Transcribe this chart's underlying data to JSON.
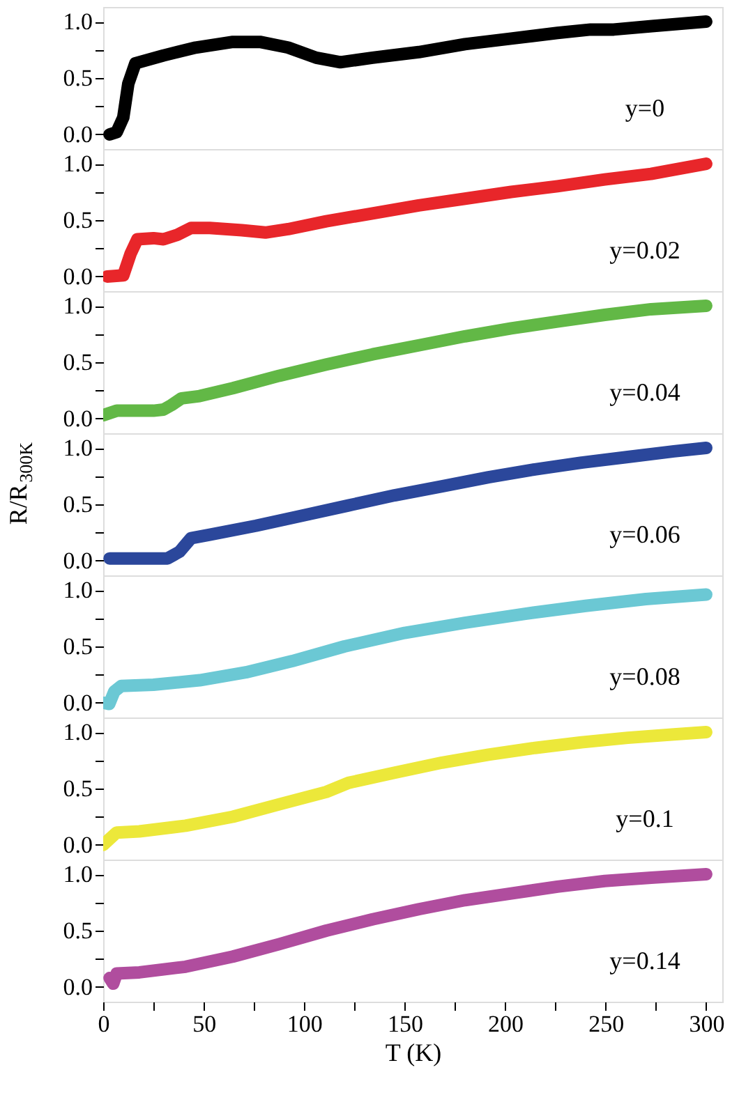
{
  "chart_data": [
    {
      "type": "line",
      "annotations": [
        "y=0"
      ],
      "xlim": [
        0,
        308
      ],
      "ylim": [
        -0.13,
        1.13
      ],
      "yticks": [
        {
          "value": 0,
          "label": "0.0"
        },
        {
          "value": 0.25,
          "label": null
        },
        {
          "value": 0.5,
          "label": "0.5"
        },
        {
          "value": 0.75,
          "label": null
        },
        {
          "value": 1,
          "label": "1.0"
        }
      ],
      "tick_labels": "y",
      "marker": "none",
      "line_style": "solid",
      "series": [
        {
          "color": "#000000",
          "x": [
            3.2,
            6.7,
            10,
            12.5,
            16,
            30,
            46,
            64.5,
            78,
            92,
            106,
            118,
            134,
            157,
            180,
            203,
            226,
            242.5,
            254,
            273,
            300
          ],
          "values": [
            0.0,
            0.02,
            0.15,
            0.45,
            0.63,
            0.7,
            0.77,
            0.82,
            0.82,
            0.77,
            0.68,
            0.64,
            0.68,
            0.73,
            0.8,
            0.85,
            0.9,
            0.93,
            0.93,
            0.96,
            1.0
          ]
        }
      ]
    },
    {
      "type": "line",
      "annotations": [
        "y=0.02"
      ],
      "xlim": [
        0,
        308
      ],
      "ylim": [
        -0.13,
        1.13
      ],
      "yticks": [
        {
          "value": 0,
          "label": "0.0"
        },
        {
          "value": 0.25,
          "label": null
        },
        {
          "value": 0.5,
          "label": "0.5"
        },
        {
          "value": 0.75,
          "label": null
        },
        {
          "value": 1,
          "label": "1.0"
        }
      ],
      "tick_labels": "y",
      "marker": "none",
      "line_style": "solid",
      "series": [
        {
          "color": "#e8262a",
          "x": [
            2,
            10,
            13.6,
            17,
            25,
            30,
            37,
            43.7,
            53,
            69,
            80.7,
            92,
            111,
            134,
            157,
            180,
            203,
            226,
            249.5,
            272.6,
            300
          ],
          "values": [
            0.0,
            0.01,
            0.2,
            0.33,
            0.34,
            0.33,
            0.37,
            0.43,
            0.43,
            0.41,
            0.39,
            0.42,
            0.49,
            0.56,
            0.63,
            0.69,
            0.75,
            0.8,
            0.86,
            0.91,
            1.0
          ]
        }
      ]
    },
    {
      "type": "line",
      "annotations": [
        "y=0.04"
      ],
      "xlim": [
        0,
        308
      ],
      "ylim": [
        -0.13,
        1.13
      ],
      "yticks": [
        {
          "value": 0,
          "label": "0.0"
        },
        {
          "value": 0.25,
          "label": null
        },
        {
          "value": 0.5,
          "label": "0.5"
        },
        {
          "value": 0.75,
          "label": null
        },
        {
          "value": 1,
          "label": "1.0"
        }
      ],
      "tick_labels": "y",
      "marker": "none",
      "line_style": "solid",
      "series": [
        {
          "color": "#62b846",
          "x": [
            0,
            6.7,
            25,
            30,
            34,
            39,
            48,
            64.5,
            87.6,
            111,
            134,
            157,
            180,
            203,
            226,
            249.5,
            272.6,
            300
          ],
          "values": [
            0.03,
            0.07,
            0.07,
            0.08,
            0.12,
            0.18,
            0.2,
            0.27,
            0.38,
            0.48,
            0.57,
            0.65,
            0.73,
            0.8,
            0.86,
            0.92,
            0.97,
            1.0
          ]
        }
      ]
    },
    {
      "type": "line",
      "annotations": [
        "y=0.06"
      ],
      "ylabel": "R/R$_{300K}$",
      "xlim": [
        0,
        308
      ],
      "ylim": [
        -0.13,
        1.13
      ],
      "yticks": [
        {
          "value": 0,
          "label": "0.0"
        },
        {
          "value": 0.25,
          "label": null
        },
        {
          "value": 0.5,
          "label": "0.5"
        },
        {
          "value": 0.75,
          "label": null
        },
        {
          "value": 1,
          "label": "1.0"
        }
      ],
      "tick_labels": "y",
      "marker": "none",
      "line_style": "solid",
      "series": [
        {
          "color": "#2b479b",
          "x": [
            3.2,
            32,
            38,
            43.7,
            53,
            76,
            99,
            122,
            145,
            168.6,
            191.7,
            214.8,
            238,
            261,
            284,
            300
          ],
          "values": [
            0.02,
            0.02,
            0.08,
            0.2,
            0.23,
            0.31,
            0.4,
            0.49,
            0.58,
            0.66,
            0.74,
            0.81,
            0.87,
            0.92,
            0.97,
            1.0
          ]
        }
      ]
    },
    {
      "type": "line",
      "annotations": [
        "y=0.08"
      ],
      "xlim": [
        0,
        308
      ],
      "ylim": [
        -0.13,
        1.13
      ],
      "yticks": [
        {
          "value": 0,
          "label": "0.0"
        },
        {
          "value": 0.25,
          "label": null
        },
        {
          "value": 0.5,
          "label": "0.5"
        },
        {
          "value": 0.75,
          "label": null
        },
        {
          "value": 1,
          "label": "1.0"
        }
      ],
      "tick_labels": "y",
      "marker": "none",
      "line_style": "solid",
      "series": [
        {
          "color": "#6bc8d4",
          "x": [
            0,
            3,
            5.5,
            9,
            25,
            48,
            71,
            94,
            120,
            150,
            180,
            210,
            240,
            270,
            300
          ],
          "values": [
            0.0,
            -0.01,
            0.1,
            0.15,
            0.16,
            0.2,
            0.27,
            0.37,
            0.5,
            0.62,
            0.71,
            0.79,
            0.86,
            0.92,
            0.96
          ]
        }
      ]
    },
    {
      "type": "line",
      "annotations": [
        "y=0.1"
      ],
      "xlim": [
        0,
        308
      ],
      "ylim": [
        -0.13,
        1.13
      ],
      "yticks": [
        {
          "value": 0,
          "label": "0.0"
        },
        {
          "value": 0.25,
          "label": null
        },
        {
          "value": 0.5,
          "label": "0.5"
        },
        {
          "value": 0.75,
          "label": null
        },
        {
          "value": 1,
          "label": "1.0"
        }
      ],
      "tick_labels": "y",
      "marker": "none",
      "line_style": "solid",
      "series": [
        {
          "color": "#ece83a",
          "x": [
            0,
            3,
            6.7,
            18,
            41,
            64.5,
            87.6,
            111,
            122,
            145,
            168.6,
            191.7,
            214.8,
            238,
            261,
            284,
            300
          ],
          "values": [
            0.0,
            0.05,
            0.11,
            0.12,
            0.17,
            0.25,
            0.36,
            0.47,
            0.55,
            0.64,
            0.73,
            0.8,
            0.86,
            0.91,
            0.95,
            0.98,
            1.0
          ]
        }
      ]
    },
    {
      "type": "line",
      "annotations": [
        "y=0.14"
      ],
      "xlabel": "T (K)",
      "xlim": [
        0,
        308
      ],
      "ylim": [
        -0.13,
        1.13
      ],
      "xticks": [
        0,
        {
          "value": 25,
          "label": null
        },
        50,
        {
          "value": 75,
          "label": null
        },
        100,
        {
          "value": 125,
          "label": null
        },
        150,
        {
          "value": 175,
          "label": null
        },
        200,
        {
          "value": 225,
          "label": null
        },
        250,
        {
          "value": 275,
          "label": null
        },
        300
      ],
      "yticks": [
        {
          "value": 0,
          "label": "0.0"
        },
        {
          "value": 0.25,
          "label": null
        },
        {
          "value": 0.5,
          "label": "0.5"
        },
        {
          "value": 0.75,
          "label": null
        },
        {
          "value": 1,
          "label": "1.0"
        }
      ],
      "marker": "none",
      "line_style": "solid",
      "series": [
        {
          "color": "#b04d9e",
          "x": [
            3.2,
            5,
            6.7,
            18,
            41,
            64.5,
            87.6,
            111,
            134,
            157,
            180,
            203,
            226,
            249.5,
            272.6,
            300
          ],
          "values": [
            0.08,
            0.03,
            0.12,
            0.13,
            0.18,
            0.27,
            0.38,
            0.5,
            0.6,
            0.69,
            0.77,
            0.83,
            0.89,
            0.94,
            0.97,
            1.0
          ]
        }
      ]
    }
  ]
}
